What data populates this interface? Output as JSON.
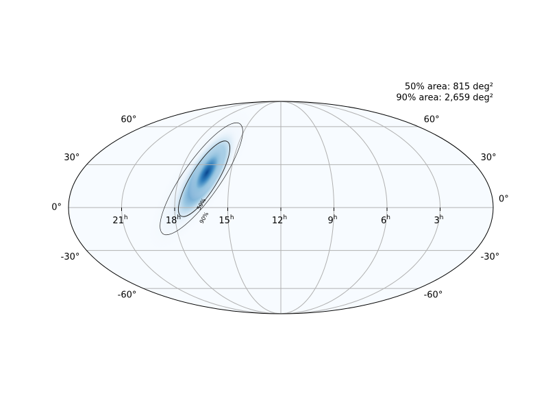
{
  "chart_data": {
    "type": "skymap",
    "projection": "mollweide",
    "annotations": [
      "50% area: 815 deg²",
      "90% area: 2,659 deg²"
    ],
    "contour_labels": [
      "50%",
      "90%"
    ],
    "xticks": [
      {
        "value": 21,
        "label": "21",
        "sup": "h"
      },
      {
        "value": 18,
        "label": "18",
        "sup": "h"
      },
      {
        "value": 15,
        "label": "15",
        "sup": "h"
      },
      {
        "value": 12,
        "label": "12",
        "sup": "h"
      },
      {
        "value": 9,
        "label": "9",
        "sup": "h"
      },
      {
        "value": 6,
        "label": "6",
        "sup": "h"
      },
      {
        "value": 3,
        "label": "3",
        "sup": "h"
      }
    ],
    "yticks": [
      {
        "value": 60,
        "label": "60°"
      },
      {
        "value": 30,
        "label": "30°"
      },
      {
        "value": 0,
        "label": "0°"
      },
      {
        "value": -30,
        "label": "-30°"
      },
      {
        "value": -60,
        "label": "-60°"
      }
    ],
    "grid": true
  }
}
